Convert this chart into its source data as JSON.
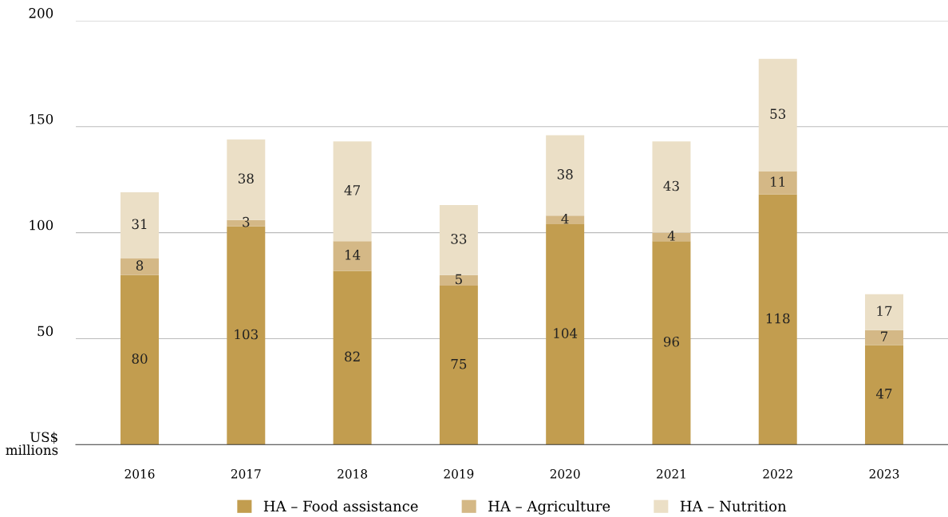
{
  "chart_data": {
    "type": "bar",
    "stacked": true,
    "ylabel": "US$\nmillions",
    "categories": [
      "2016",
      "2017",
      "2018",
      "2019",
      "2020",
      "2021",
      "2022",
      "2023"
    ],
    "series": [
      {
        "name": "HA – Food assistance",
        "color": "#c29d4f",
        "values": [
          80,
          103,
          82,
          75,
          104,
          96,
          118,
          47
        ]
      },
      {
        "name": "HA – Agriculture",
        "color": "#d4b886",
        "values": [
          8,
          3,
          14,
          5,
          4,
          4,
          11,
          7
        ]
      },
      {
        "name": "HA – Nutrition",
        "color": "#ebdfc6",
        "values": [
          31,
          38,
          47,
          33,
          38,
          43,
          53,
          17
        ]
      }
    ],
    "ylim": [
      0,
      200
    ],
    "yticks": [
      50,
      100,
      150,
      200
    ],
    "grid": "y",
    "legend": "bottom",
    "data_labels": true
  }
}
